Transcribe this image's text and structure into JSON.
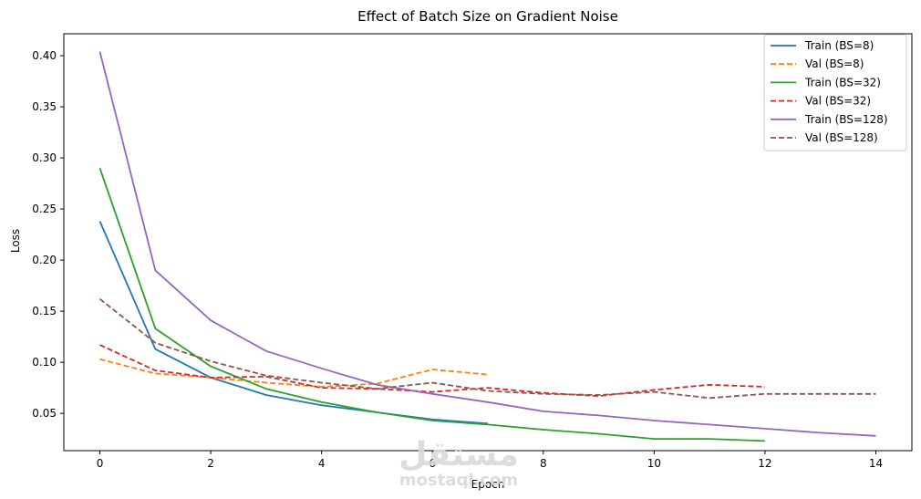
{
  "chart_data": {
    "type": "line",
    "title": "Effect of Batch Size on Gradient Noise",
    "xlabel": "Epoch",
    "ylabel": "Loss",
    "xlim": [
      -0.65,
      14.65
    ],
    "ylim": [
      0.0135,
      0.4215
    ],
    "xticks": [
      0,
      2,
      4,
      6,
      8,
      10,
      12,
      14
    ],
    "yticks": [
      0.05,
      0.1,
      0.15,
      0.2,
      0.25,
      0.3,
      0.35,
      0.4
    ],
    "ytick_labels": [
      "0.05",
      "0.10",
      "0.15",
      "0.20",
      "0.25",
      "0.30",
      "0.35",
      "0.40"
    ],
    "grid": false,
    "legend_position": "top-right",
    "series": [
      {
        "name": "Train (BS=8)",
        "style": "solid",
        "color": "#1f77b4",
        "x": [
          0,
          1,
          2,
          3,
          4,
          5,
          6,
          7
        ],
        "y": [
          0.238,
          0.113,
          0.085,
          0.068,
          0.058,
          0.051,
          0.044,
          0.04
        ]
      },
      {
        "name": "Val (BS=8)",
        "style": "dashed",
        "color": "#ff7f0e",
        "x": [
          0,
          1,
          2,
          3,
          4,
          5,
          6,
          7
        ],
        "y": [
          0.103,
          0.089,
          0.085,
          0.08,
          0.076,
          0.079,
          0.093,
          0.088
        ]
      },
      {
        "name": "Train (BS=32)",
        "style": "solid",
        "color": "#2ca02c",
        "x": [
          0,
          1,
          2,
          3,
          4,
          5,
          6,
          7,
          8,
          9,
          10,
          11,
          12
        ],
        "y": [
          0.29,
          0.133,
          0.096,
          0.074,
          0.061,
          0.051,
          0.043,
          0.039,
          0.034,
          0.03,
          0.025,
          0.025,
          0.023
        ]
      },
      {
        "name": "Val (BS=32)",
        "style": "dashed",
        "color": "#d62728",
        "x": [
          0,
          1,
          2,
          3,
          4,
          5,
          6,
          7,
          8,
          9,
          10,
          11,
          12
        ],
        "y": [
          0.117,
          0.092,
          0.085,
          0.086,
          0.075,
          0.074,
          0.071,
          0.075,
          0.07,
          0.067,
          0.073,
          0.078,
          0.076
        ]
      },
      {
        "name": "Train (BS=128)",
        "style": "solid",
        "color": "#9467bd",
        "x": [
          0,
          1,
          2,
          3,
          4,
          5,
          6,
          7,
          8,
          9,
          10,
          11,
          12,
          13,
          14
        ],
        "y": [
          0.404,
          0.19,
          0.141,
          0.111,
          0.094,
          0.078,
          0.069,
          0.061,
          0.052,
          0.048,
          0.043,
          0.039,
          0.035,
          0.031,
          0.028
        ]
      },
      {
        "name": "Val (BS=128)",
        "style": "dashed",
        "color": "#8c564b",
        "x": [
          0,
          1,
          2,
          3,
          4,
          5,
          6,
          7,
          8,
          9,
          10,
          11,
          12,
          13,
          14
        ],
        "y": [
          0.162,
          0.119,
          0.101,
          0.087,
          0.08,
          0.074,
          0.08,
          0.072,
          0.069,
          0.068,
          0.071,
          0.065,
          0.069,
          0.069,
          0.069
        ]
      }
    ]
  },
  "watermark": {
    "arabic": "مستقل",
    "latin": "mostaql.com"
  }
}
